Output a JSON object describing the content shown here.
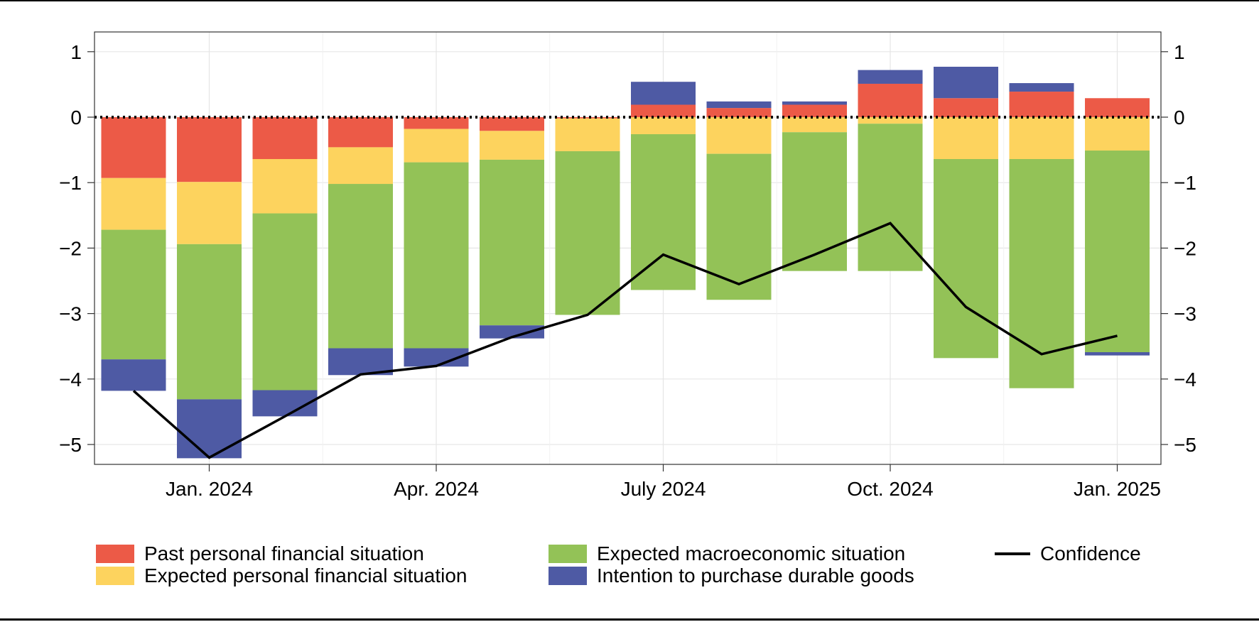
{
  "chart_data": {
    "type": "stacked-bar+line",
    "title": "",
    "xlabel": "",
    "ylabel": "",
    "ylim": [
      -5.3,
      1.3
    ],
    "y_ticks": [
      1,
      0,
      -1,
      -2,
      -3,
      -4,
      -5
    ],
    "y_tick_labels": [
      "1",
      "0",
      "−1",
      "−2",
      "−3",
      "−4",
      "−5"
    ],
    "x_tick_labels": [
      "Jan. 2024",
      "Apr. 2024",
      "July 2024",
      "Oct. 2024",
      "Jan. 2025"
    ],
    "x_tick_positions": [
      1,
      4,
      7,
      10,
      13
    ],
    "categories": [
      "Dec. 2023",
      "Jan. 2024",
      "Feb. 2024",
      "Mar. 2024",
      "Apr. 2024",
      "May 2024",
      "June 2024",
      "July 2024",
      "Aug. 2024",
      "Sep. 2024",
      "Oct. 2024",
      "Nov. 2024",
      "Dec. 2024",
      "Jan. 2025"
    ],
    "series": [
      {
        "name": "Past personal financial situation",
        "color": "#ec5a47",
        "values": [
          -0.93,
          -0.99,
          -0.64,
          -0.46,
          -0.18,
          -0.21,
          -0.02,
          0.19,
          0.14,
          0.19,
          0.51,
          0.29,
          0.39,
          0.29
        ]
      },
      {
        "name": "Expected personal financial situation",
        "color": "#fdd35e",
        "values": [
          -0.79,
          -0.95,
          -0.83,
          -0.56,
          -0.51,
          -0.44,
          -0.5,
          -0.26,
          -0.56,
          -0.23,
          -0.1,
          -0.64,
          -0.64,
          -0.51
        ]
      },
      {
        "name": "Expected macroeconomic situation",
        "color": "#93c257",
        "values": [
          -1.98,
          -2.37,
          -2.7,
          -2.51,
          -2.84,
          -2.53,
          -2.5,
          -2.38,
          -2.23,
          -2.12,
          -2.25,
          -3.04,
          -3.5,
          -3.08
        ]
      },
      {
        "name": "Intention to purchase durable goods",
        "color": "#4e5aa4",
        "values": [
          -0.48,
          -0.9,
          -0.4,
          -0.41,
          -0.28,
          -0.2,
          0.0,
          0.35,
          0.1,
          0.05,
          0.21,
          0.48,
          0.13,
          -0.05
        ]
      }
    ],
    "line": {
      "name": "Confidence",
      "color": "#000000",
      "values": [
        -4.18,
        -5.2,
        -4.57,
        -3.93,
        -3.8,
        -3.36,
        -3.02,
        -2.1,
        -2.55,
        -2.1,
        -1.62,
        -2.9,
        -3.62,
        -3.34
      ]
    },
    "zero_line": "dotted",
    "grid": true,
    "legend_position": "bottom"
  }
}
